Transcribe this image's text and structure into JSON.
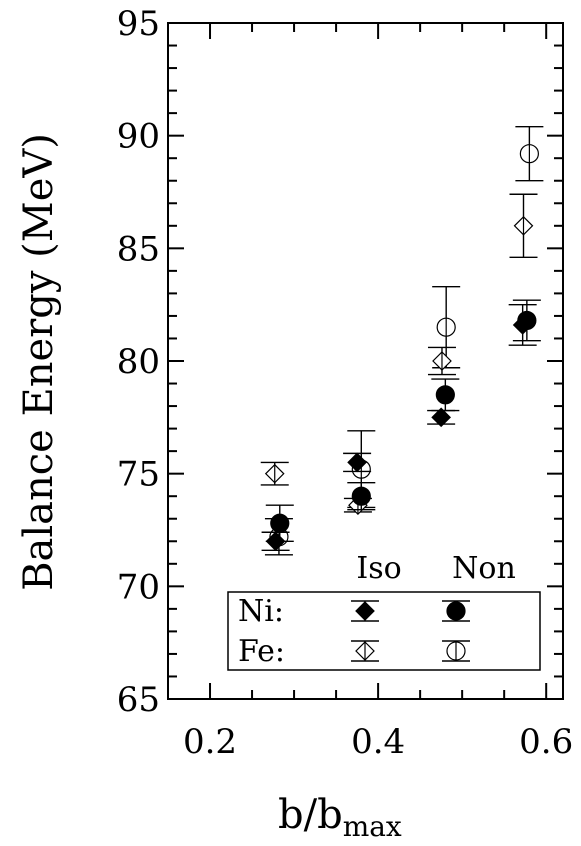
{
  "chart_data": {
    "type": "scatter",
    "title": "",
    "xlabel": "b/b",
    "xlabel_sub": "max",
    "ylabel": "Balance Energy (MeV)",
    "xlim": [
      0.15,
      0.62
    ],
    "ylim": [
      65,
      95
    ],
    "x_ticks": [
      {
        "value": 0.2,
        "label": "0.2"
      },
      {
        "value": 0.4,
        "label": "0.4"
      },
      {
        "value": 0.6,
        "label": "0.6"
      }
    ],
    "y_ticks": [
      {
        "value": 65,
        "label": "65"
      },
      {
        "value": 70,
        "label": "70"
      },
      {
        "value": 75,
        "label": "75"
      },
      {
        "value": 80,
        "label": "80"
      },
      {
        "value": 85,
        "label": "85"
      },
      {
        "value": 90,
        "label": "90"
      },
      {
        "value": 95,
        "label": "95"
      }
    ],
    "series": [
      {
        "key": "ni-iso",
        "marker": "diamond",
        "filled": true,
        "x": [
          0.278,
          0.375,
          0.475,
          0.572
        ],
        "y": [
          72.0,
          75.5,
          77.5,
          81.6
        ],
        "err": [
          0.4,
          0.4,
          0.3,
          0.9
        ]
      },
      {
        "key": "ni-non",
        "marker": "circle",
        "filled": true,
        "x": [
          0.283,
          0.38,
          0.48,
          0.577
        ],
        "y": [
          72.8,
          74.0,
          78.5,
          81.8
        ],
        "err": [
          0.8,
          0.6,
          0.7,
          0.9
        ]
      },
      {
        "key": "fe-iso",
        "marker": "diamond",
        "filled": false,
        "x": [
          0.277,
          0.376,
          0.476,
          0.573
        ],
        "y": [
          75.0,
          73.6,
          80.0,
          86.0
        ],
        "err": [
          0.5,
          0.3,
          0.6,
          1.4
        ]
      },
      {
        "key": "fe-non",
        "marker": "circle",
        "filled": false,
        "x": [
          0.282,
          0.38,
          0.481,
          0.58
        ],
        "y": [
          72.2,
          75.2,
          81.5,
          89.2
        ],
        "err": [
          0.8,
          1.7,
          1.8,
          1.2
        ]
      }
    ],
    "legend": {
      "position": "bottom-right",
      "col_headers": [
        "Iso",
        "Non"
      ],
      "rows": [
        {
          "label": "Ni:",
          "iso": "ni-iso",
          "non": "ni-non"
        },
        {
          "label": "Fe:",
          "iso": "fe-iso",
          "non": "fe-non"
        }
      ]
    },
    "grid": false
  }
}
